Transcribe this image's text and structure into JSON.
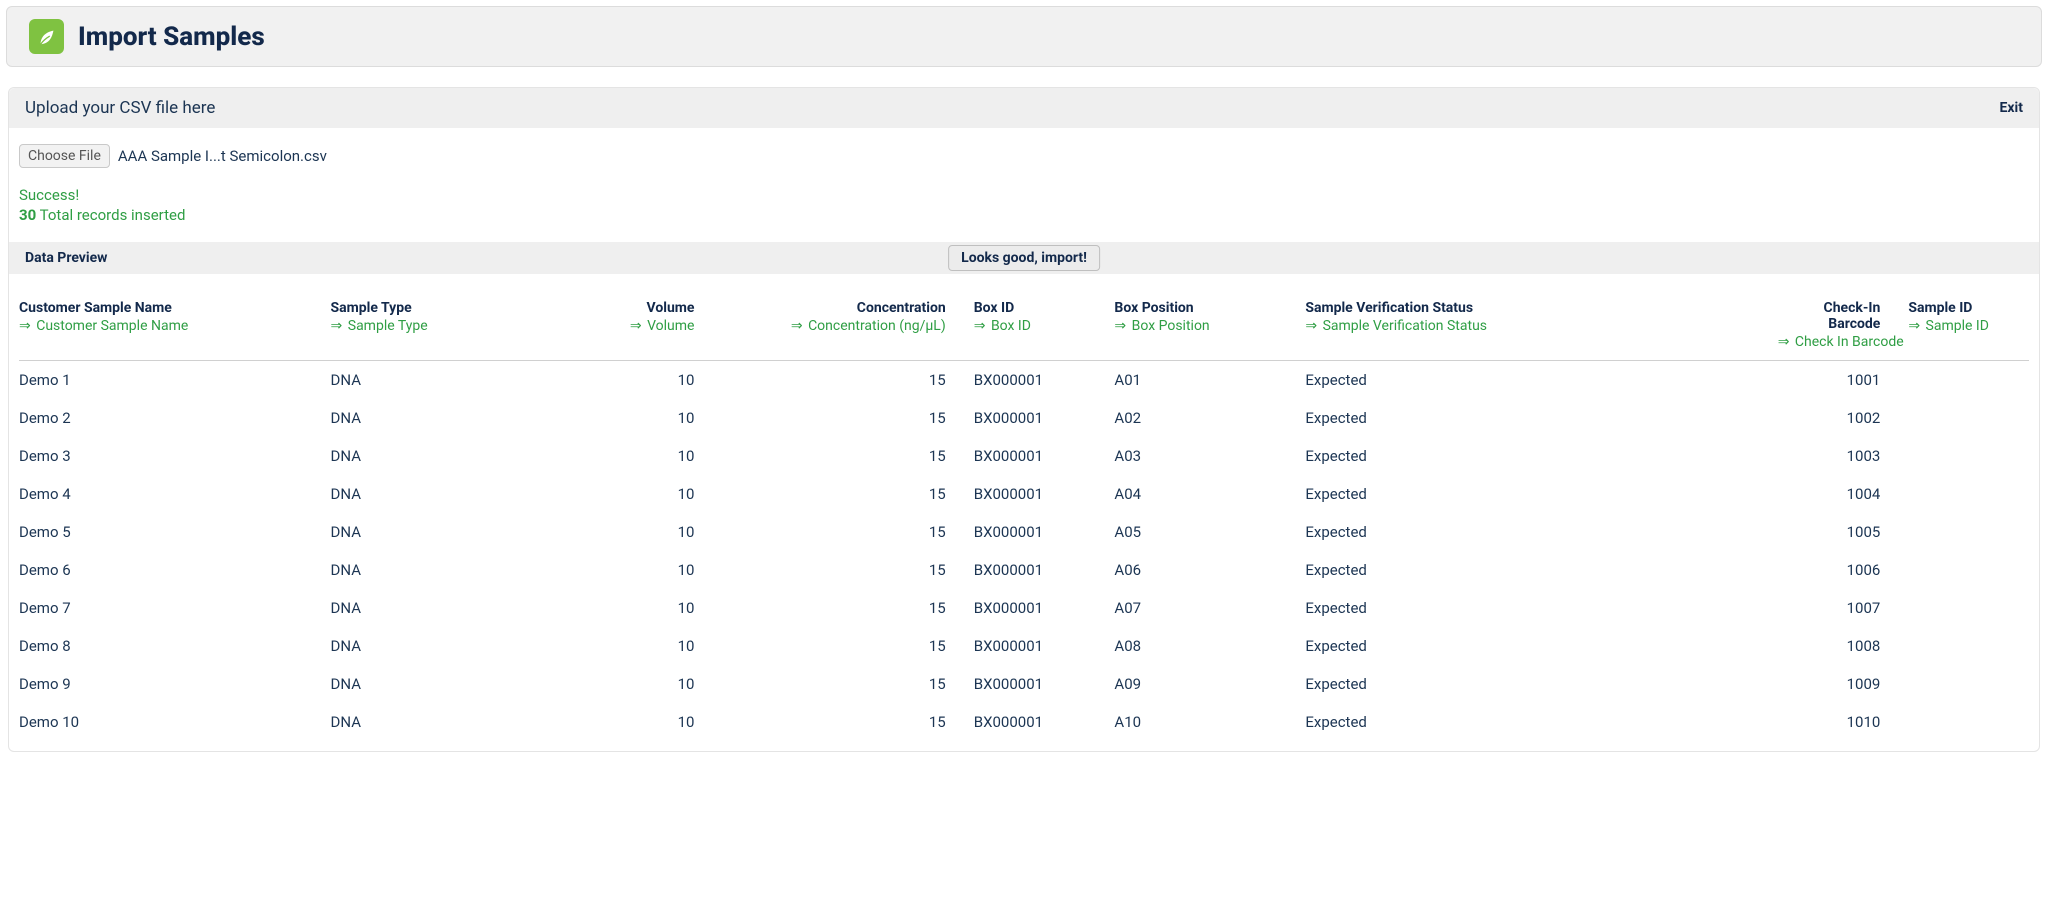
{
  "header": {
    "title": "Import Samples",
    "icon_bg": "#7fc241"
  },
  "upload_bar": {
    "label": "Upload your CSV file here",
    "exit_label": "Exit"
  },
  "file": {
    "choose_button_label": "Choose File",
    "file_name": "AAA Sample I...t Semicolon.csv"
  },
  "status": {
    "success_label": "Success!",
    "inserted_count": "30",
    "inserted_suffix": " Total records inserted"
  },
  "preview_bar": {
    "label": "Data Preview",
    "import_button_label": "Looks good, import!"
  },
  "colors": {
    "text_primary": "#13294b",
    "text_body": "#1c3553",
    "success_green": "#2f9e44",
    "header_bg": "#f1f1f1",
    "bar_bg": "#efefef",
    "border": "#d0d0d0"
  },
  "table": {
    "columns": [
      {
        "header": "Customer Sample Name",
        "mapping": "Customer Sample Name",
        "align": "left"
      },
      {
        "header": "Sample Type",
        "mapping": "Sample Type",
        "align": "left"
      },
      {
        "header": "Volume",
        "mapping": "Volume",
        "align": "right"
      },
      {
        "header": "Concentration",
        "mapping": "Concentration (ng/µL)",
        "align": "right"
      },
      {
        "header": "Box ID",
        "mapping": "Box ID",
        "align": "left"
      },
      {
        "header": "Box Position",
        "mapping": "Box Position",
        "align": "left"
      },
      {
        "header": "Sample Verification Status",
        "mapping": "Sample Verification Status",
        "align": "left"
      },
      {
        "header": "Check-In Barcode",
        "mapping": "Check In Barcode",
        "align": "right"
      },
      {
        "header": "Sample ID",
        "mapping": "Sample ID",
        "align": "left"
      }
    ],
    "rows": [
      {
        "name": "Demo 1",
        "type": "DNA",
        "volume": "10",
        "conc": "15",
        "box": "BX000001",
        "pos": "A01",
        "status": "Expected",
        "barcode": "1001",
        "id": ""
      },
      {
        "name": "Demo 2",
        "type": "DNA",
        "volume": "10",
        "conc": "15",
        "box": "BX000001",
        "pos": "A02",
        "status": "Expected",
        "barcode": "1002",
        "id": ""
      },
      {
        "name": "Demo 3",
        "type": "DNA",
        "volume": "10",
        "conc": "15",
        "box": "BX000001",
        "pos": "A03",
        "status": "Expected",
        "barcode": "1003",
        "id": ""
      },
      {
        "name": "Demo 4",
        "type": "DNA",
        "volume": "10",
        "conc": "15",
        "box": "BX000001",
        "pos": "A04",
        "status": "Expected",
        "barcode": "1004",
        "id": ""
      },
      {
        "name": "Demo 5",
        "type": "DNA",
        "volume": "10",
        "conc": "15",
        "box": "BX000001",
        "pos": "A05",
        "status": "Expected",
        "barcode": "1005",
        "id": ""
      },
      {
        "name": "Demo 6",
        "type": "DNA",
        "volume": "10",
        "conc": "15",
        "box": "BX000001",
        "pos": "A06",
        "status": "Expected",
        "barcode": "1006",
        "id": ""
      },
      {
        "name": "Demo 7",
        "type": "DNA",
        "volume": "10",
        "conc": "15",
        "box": "BX000001",
        "pos": "A07",
        "status": "Expected",
        "barcode": "1007",
        "id": ""
      },
      {
        "name": "Demo 8",
        "type": "DNA",
        "volume": "10",
        "conc": "15",
        "box": "BX000001",
        "pos": "A08",
        "status": "Expected",
        "barcode": "1008",
        "id": ""
      },
      {
        "name": "Demo 9",
        "type": "DNA",
        "volume": "10",
        "conc": "15",
        "box": "BX000001",
        "pos": "A09",
        "status": "Expected",
        "barcode": "1009",
        "id": ""
      },
      {
        "name": "Demo 10",
        "type": "DNA",
        "volume": "10",
        "conc": "15",
        "box": "BX000001",
        "pos": "A10",
        "status": "Expected",
        "barcode": "1010",
        "id": ""
      }
    ]
  }
}
